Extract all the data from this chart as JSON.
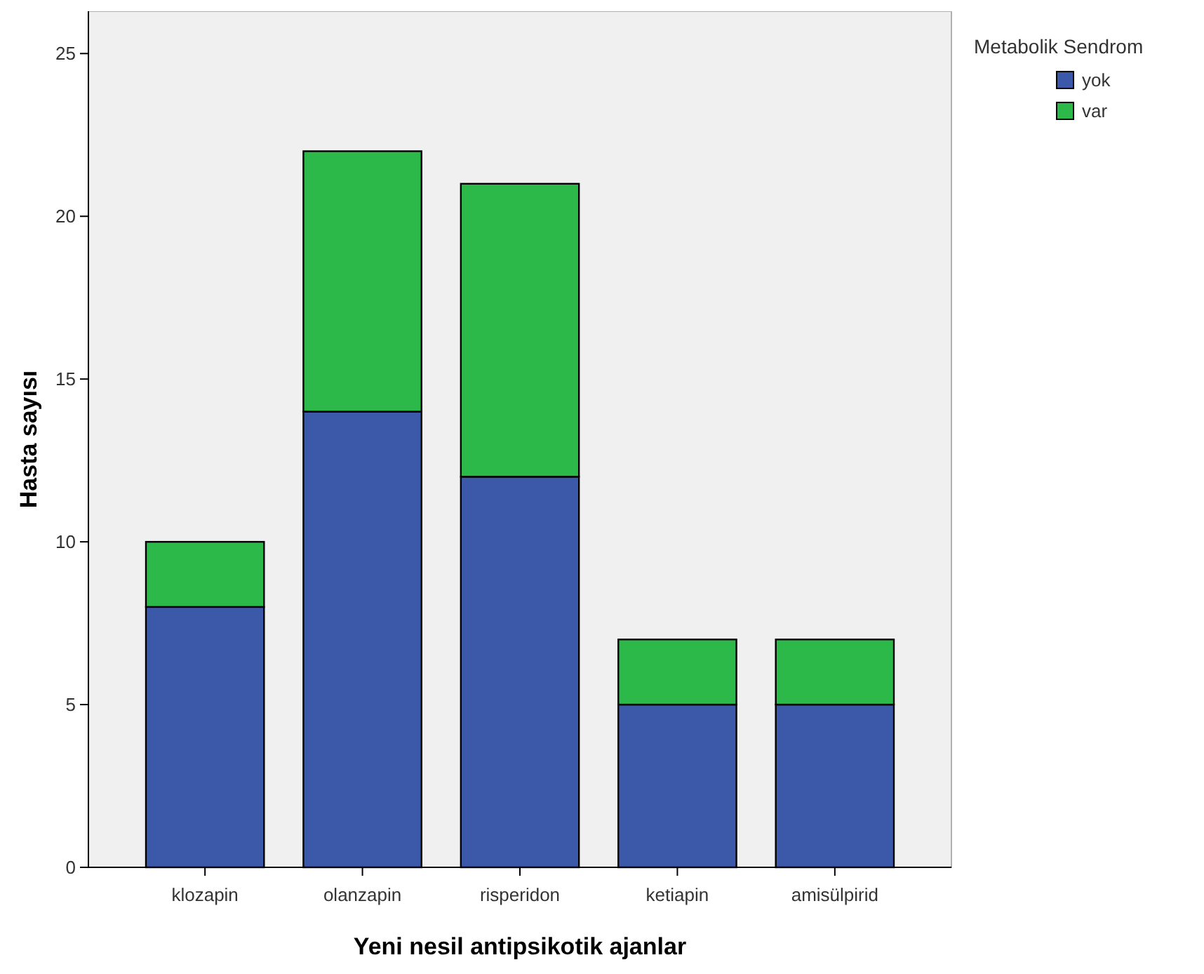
{
  "chart_data": {
    "type": "bar",
    "xlabel": "Yeni nesil antipsikotik ajanlar",
    "ylabel": "Hasta sayısı",
    "legend_title": "Metabolik Sendrom",
    "categories": [
      "klozapin",
      "olanzapin",
      "risperidon",
      "ketiapin",
      "amisülpirid"
    ],
    "series": [
      {
        "name": "yok",
        "color": "#3c58a8",
        "values": [
          8,
          14,
          12,
          5,
          5
        ]
      },
      {
        "name": "var",
        "color": "#2db84a",
        "values": [
          2,
          8,
          9,
          2,
          2
        ]
      }
    ],
    "stacked": true,
    "ylim": [
      0,
      26.3
    ],
    "yticks": [
      0,
      5,
      10,
      15,
      20,
      25
    ],
    "grid": false,
    "legend": "top right"
  }
}
